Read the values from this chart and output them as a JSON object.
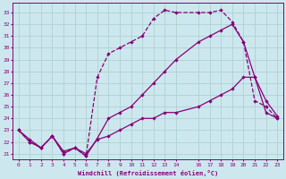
{
  "xlabel": "Windchill (Refroidissement éolien,°C)",
  "bg_color": "#cce8ee",
  "grid_color": "#aacccc",
  "line_color": "#880077",
  "x_ticks": [
    0,
    1,
    2,
    3,
    4,
    5,
    6,
    7,
    8,
    9,
    10,
    11,
    12,
    13,
    14,
    16,
    17,
    18,
    19,
    20,
    21,
    22,
    23
  ],
  "ylim": [
    20.5,
    33.8
  ],
  "xlim": [
    -0.5,
    23.5
  ],
  "yticks": [
    21,
    22,
    23,
    24,
    25,
    26,
    27,
    28,
    29,
    30,
    31,
    32,
    33
  ],
  "line1_x": [
    0,
    1,
    2,
    3,
    4,
    5,
    6,
    7,
    8,
    9,
    10,
    11,
    12,
    13,
    14,
    16,
    17,
    18,
    19,
    20,
    21,
    22,
    23
  ],
  "line1_y": [
    23,
    22,
    21.5,
    22.5,
    21,
    21.5,
    20.8,
    27.5,
    29.5,
    30,
    30.5,
    31,
    32.5,
    33.2,
    33,
    33,
    33,
    33.2,
    32.2,
    30.5,
    25.5,
    25,
    24
  ],
  "line2_x": [
    0,
    1,
    2,
    3,
    4,
    5,
    6,
    7,
    8,
    9,
    10,
    11,
    12,
    13,
    14,
    16,
    17,
    18,
    19,
    20,
    21,
    22,
    23
  ],
  "line2_y": [
    23,
    22,
    21.5,
    22.5,
    21,
    21.5,
    20.8,
    22.3,
    24,
    24.5,
    25,
    26,
    27,
    28,
    29,
    30.5,
    31,
    31.5,
    32,
    30.5,
    27.5,
    25.5,
    24.2
  ],
  "line3_x": [
    0,
    1,
    2,
    3,
    4,
    5,
    6,
    7,
    8,
    9,
    10,
    11,
    12,
    13,
    14,
    16,
    17,
    18,
    19,
    20,
    21,
    22,
    23
  ],
  "line3_y": [
    23,
    22.2,
    21.5,
    22.5,
    21.2,
    21.5,
    21,
    22.2,
    22.5,
    23,
    23.5,
    24,
    24,
    24.5,
    24.5,
    25,
    25.5,
    26,
    26.5,
    27.5,
    27.5,
    24.5,
    24
  ]
}
